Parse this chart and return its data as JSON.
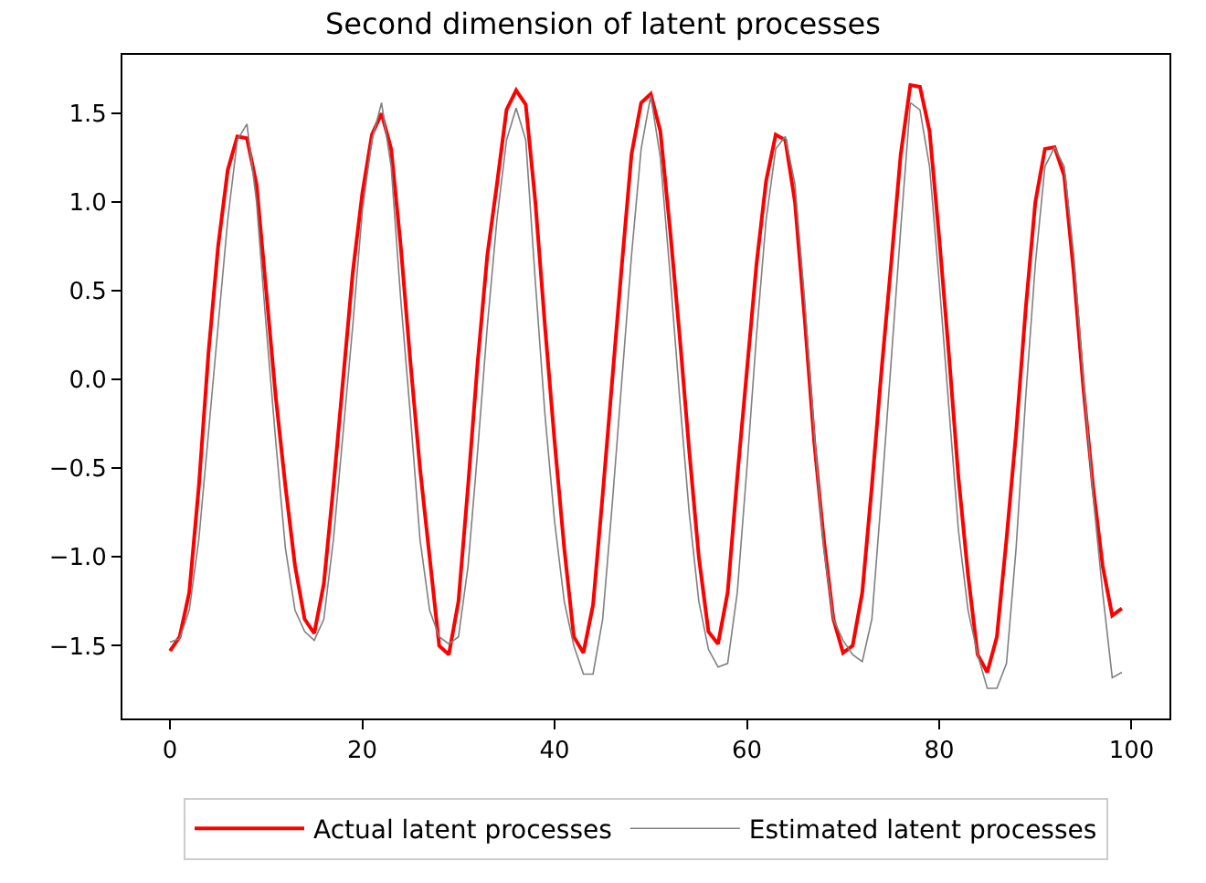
{
  "chart_data": {
    "type": "line",
    "title": "Second dimension of latent processes",
    "x": [
      0,
      1,
      2,
      3,
      4,
      5,
      6,
      7,
      8,
      9,
      10,
      11,
      12,
      13,
      14,
      15,
      16,
      17,
      18,
      19,
      20,
      21,
      22,
      23,
      24,
      25,
      26,
      27,
      28,
      29,
      30,
      31,
      32,
      33,
      34,
      35,
      36,
      37,
      38,
      39,
      40,
      41,
      42,
      43,
      44,
      45,
      46,
      47,
      48,
      49,
      50,
      51,
      52,
      53,
      54,
      55,
      56,
      57,
      58,
      59,
      60,
      61,
      62,
      63,
      64,
      65,
      66,
      67,
      68,
      69,
      70,
      71,
      72,
      73,
      74,
      75,
      76,
      77,
      78,
      79,
      80,
      81,
      82,
      83,
      84,
      85,
      86,
      87,
      88,
      89,
      90,
      91,
      92,
      93,
      94,
      95,
      96,
      97,
      98,
      99
    ],
    "series": [
      {
        "name": "Actual latent processes",
        "color": "#ff0000",
        "values": [
          -1.53,
          -1.45,
          -1.2,
          -0.6,
          0.15,
          0.75,
          1.18,
          1.37,
          1.36,
          1.1,
          0.5,
          -0.1,
          -0.6,
          -1.05,
          -1.35,
          -1.43,
          -1.15,
          -0.6,
          0.0,
          0.6,
          1.05,
          1.38,
          1.5,
          1.3,
          0.75,
          0.1,
          -0.5,
          -1.0,
          -1.5,
          -1.55,
          -1.25,
          -0.6,
          0.1,
          0.7,
          1.1,
          1.52,
          1.63,
          1.55,
          1.0,
          0.3,
          -0.35,
          -0.95,
          -1.45,
          -1.54,
          -1.27,
          -0.65,
          0.0,
          0.65,
          1.27,
          1.56,
          1.61,
          1.4,
          0.85,
          0.25,
          -0.4,
          -1.0,
          -1.42,
          -1.49,
          -1.2,
          -0.55,
          0.05,
          0.65,
          1.12,
          1.38,
          1.35,
          1.0,
          0.35,
          -0.35,
          -0.9,
          -1.35,
          -1.54,
          -1.5,
          -1.2,
          -0.6,
          0.05,
          0.65,
          1.27,
          1.66,
          1.65,
          1.4,
          0.8,
          0.15,
          -0.55,
          -1.1,
          -1.55,
          -1.65,
          -1.45,
          -0.9,
          -0.3,
          0.4,
          1.0,
          1.3,
          1.31,
          1.15,
          0.6,
          -0.05,
          -0.6,
          -1.05,
          -1.33,
          -1.29
        ]
      },
      {
        "name": "Estimated latent processes",
        "color": "#808080",
        "values": [
          -1.48,
          -1.46,
          -1.3,
          -0.9,
          -0.3,
          0.3,
          0.9,
          1.35,
          1.44,
          1.0,
          0.3,
          -0.35,
          -0.95,
          -1.3,
          -1.42,
          -1.47,
          -1.35,
          -0.9,
          -0.3,
          0.3,
          0.95,
          1.35,
          1.56,
          1.2,
          0.45,
          -0.2,
          -0.9,
          -1.3,
          -1.45,
          -1.49,
          -1.45,
          -1.05,
          -0.4,
          0.3,
          0.9,
          1.35,
          1.53,
          1.35,
          0.55,
          -0.2,
          -0.8,
          -1.25,
          -1.5,
          -1.66,
          -1.66,
          -1.35,
          -0.7,
          0.0,
          0.7,
          1.3,
          1.6,
          1.25,
          0.6,
          -0.1,
          -0.75,
          -1.25,
          -1.52,
          -1.62,
          -1.6,
          -1.2,
          -0.5,
          0.25,
          0.9,
          1.3,
          1.37,
          1.1,
          0.45,
          -0.3,
          -0.95,
          -1.35,
          -1.47,
          -1.55,
          -1.59,
          -1.35,
          -0.65,
          0.1,
          0.85,
          1.56,
          1.52,
          1.2,
          0.55,
          -0.15,
          -0.85,
          -1.3,
          -1.55,
          -1.74,
          -1.74,
          -1.6,
          -0.95,
          -0.1,
          0.65,
          1.2,
          1.31,
          1.2,
          0.7,
          0.0,
          -0.65,
          -1.2,
          -1.68,
          -1.65
        ]
      }
    ],
    "xlim": [
      -4.95,
      103.95
    ],
    "xticks": [
      0,
      20,
      40,
      60,
      80,
      100
    ],
    "ylim": [
      -1.91,
      1.83
    ],
    "yticks": [
      {
        "value": -1.5,
        "label": "−1.5"
      },
      {
        "value": -1,
        "label": "−1.0"
      },
      {
        "value": -0.5,
        "label": "−0.5"
      },
      {
        "value": 0,
        "label": "0.0"
      },
      {
        "value": 0.5,
        "label": "0.5"
      },
      {
        "value": 1,
        "label": "1.0"
      },
      {
        "value": 1.5,
        "label": "1.5"
      }
    ],
    "grid": false,
    "legend": "bottom",
    "marker": "none",
    "line_style": "solid"
  }
}
